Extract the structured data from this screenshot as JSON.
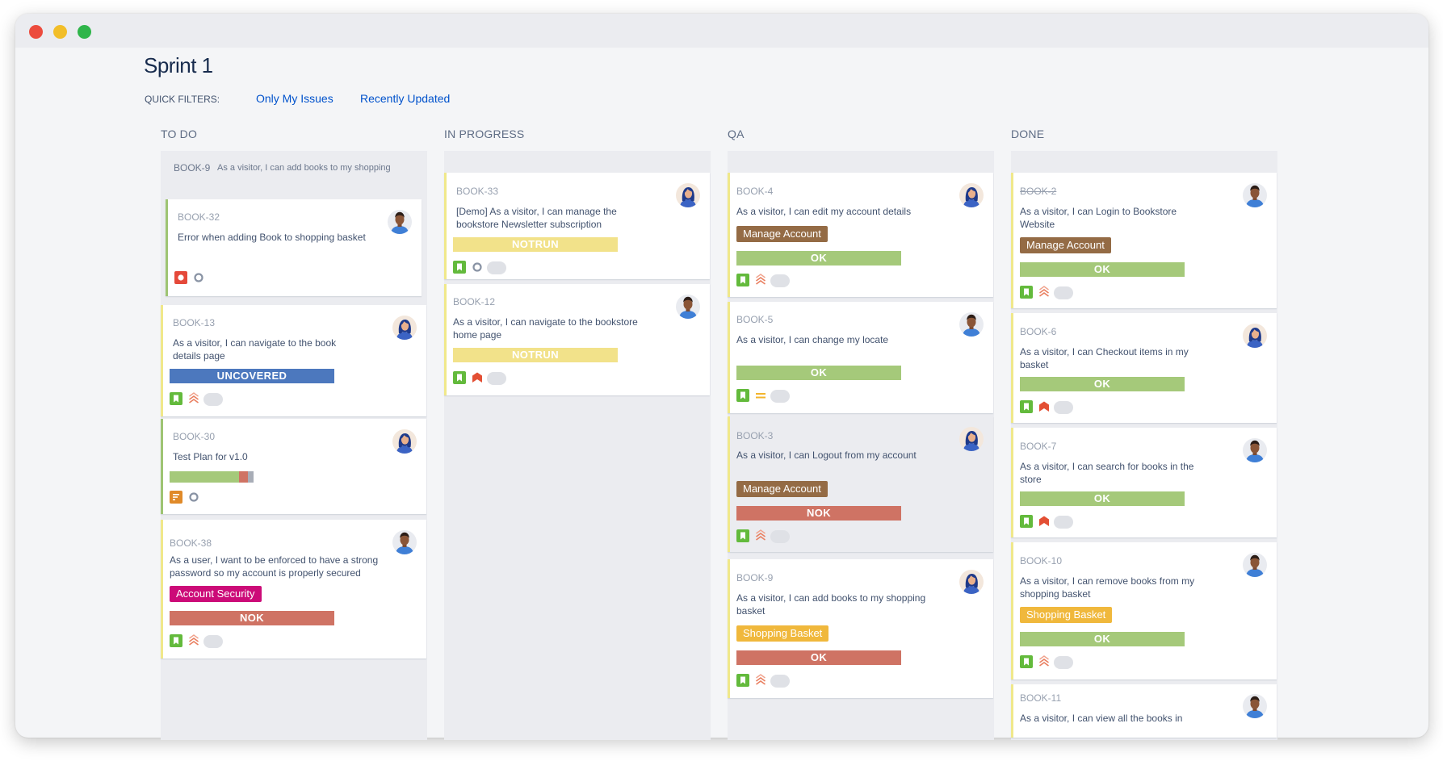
{
  "page": {
    "title": "Sprint 1",
    "quick_filters_label": "QUICK FILTERS:",
    "quick_filters": [
      "Only My Issues",
      "Recently Updated"
    ]
  },
  "colors": {
    "accent": "#0052cc",
    "uncovered": "#4c78be",
    "notrun": "#f2e28a",
    "ok": "#a5c97a",
    "nok": "#cf7364",
    "manage_account": "#946b45",
    "account_security": "#cc0b78",
    "shopping_basket": "#f0b83c"
  },
  "columns": [
    {
      "title": "TO DO",
      "parent": {
        "key": "BOOK-9",
        "summary": "As a visitor, I can add books to my shopping"
      },
      "cards": [
        {
          "key": "BOOK-32",
          "summary": "Error when adding Book to shopping basket",
          "type": "bug-icon",
          "priority": "status-circle-icon",
          "avatar": "male-avatar"
        },
        {
          "key": "BOOK-13",
          "summary": "As a visitor, I can navigate to the book details page",
          "test_status": "UNCOVERED",
          "type": "story-icon",
          "priority": "priority-high-icon",
          "avatar": "female-avatar"
        },
        {
          "key": "BOOK-30",
          "summary": "Test Plan for v1.0",
          "progress": {
            "passed": 0.71,
            "failed": 0.09,
            "other": 0.06
          },
          "type": "test-plan-icon",
          "priority": "status-circle-icon",
          "avatar": "female-avatar"
        },
        {
          "key": "BOOK-38",
          "summary": "As a user, I want to be enforced to have a strong password so my account is properly secured",
          "epic": "Account Security",
          "test_status": "NOK",
          "type": "story-icon",
          "priority": "priority-high-icon",
          "avatar": "male-avatar"
        }
      ]
    },
    {
      "title": "IN PROGRESS",
      "cards": [
        {
          "key": "BOOK-33",
          "summary": "[Demo] As a visitor, I can manage the bookstore Newsletter subscription",
          "test_status": "NOTRUN",
          "type": "story-icon",
          "priority": "status-circle-icon",
          "avatar": "female-avatar"
        },
        {
          "key": "BOOK-12",
          "summary": "As a visitor, I can navigate to the bookstore home page",
          "test_status": "NOTRUN",
          "type": "story-icon",
          "priority": "priority-highest-icon",
          "avatar": "male-avatar"
        }
      ]
    },
    {
      "title": "QA",
      "cards": [
        {
          "key": "BOOK-4",
          "summary": "As a visitor, I can edit my account details",
          "epic": "Manage Account",
          "test_status": "OK",
          "type": "story-icon",
          "priority": "priority-high-icon",
          "avatar": "female-avatar"
        },
        {
          "key": "BOOK-5",
          "summary": "As a visitor, I can change my locate",
          "test_status": "OK",
          "type": "story-icon",
          "priority": "priority-medium-icon",
          "avatar": "male-avatar"
        },
        {
          "key": "BOOK-3",
          "summary": "As a visitor, I can Logout from my account",
          "epic": "Manage Account",
          "test_status": "NOK",
          "type": "story-icon",
          "priority": "priority-high-icon",
          "avatar": "female-avatar"
        },
        {
          "key": "BOOK-9",
          "summary": "As a visitor, I can add books to my shopping basket",
          "epic": "Shopping Basket",
          "test_status": "OK",
          "type": "story-icon",
          "priority": "priority-high-icon",
          "avatar": "female-avatar"
        }
      ]
    },
    {
      "title": "DONE",
      "cards": [
        {
          "key": "BOOK-2",
          "summary": "As a visitor, I can Login to Bookstore Website",
          "epic": "Manage Account",
          "test_status": "OK",
          "type": "story-icon",
          "priority": "priority-high-icon",
          "avatar": "male-avatar"
        },
        {
          "key": "BOOK-6",
          "summary": "As a visitor, I can Checkout items in my basket",
          "test_status": "OK",
          "type": "story-icon",
          "priority": "priority-highest-icon",
          "avatar": "female-avatar"
        },
        {
          "key": "BOOK-7",
          "summary": "As a visitor, I can search for books in the store",
          "test_status": "OK",
          "type": "story-icon",
          "priority": "priority-highest-icon",
          "avatar": "male-avatar"
        },
        {
          "key": "BOOK-10",
          "summary": "As a visitor, I can remove books from my shopping basket",
          "epic": "Shopping Basket",
          "test_status": "OK",
          "type": "story-icon",
          "priority": "priority-high-icon",
          "avatar": "male-avatar"
        },
        {
          "key": "BOOK-11",
          "summary": "As a visitor, I can view all the books in",
          "avatar": "male-avatar"
        }
      ]
    }
  ]
}
